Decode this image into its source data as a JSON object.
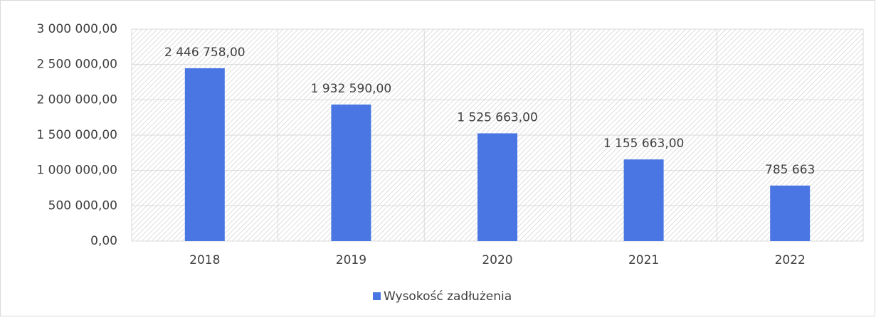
{
  "chart_data": {
    "type": "bar",
    "categories": [
      "2018",
      "2019",
      "2020",
      "2021",
      "2022"
    ],
    "series": [
      {
        "name": "Wysokość zadłużenia",
        "color": "#4a76e3",
        "values": [
          2446758,
          1932590,
          1525663,
          1155663,
          785663
        ],
        "value_labels": [
          "2 446 758,00",
          "1 932 590,00",
          "1 525 663,00",
          "1 155 663,00",
          "785 663"
        ]
      }
    ],
    "ylim": [
      0,
      3000000
    ],
    "yticks": [
      {
        "value": 0,
        "label": "0,00"
      },
      {
        "value": 500000,
        "label": "500 000,00"
      },
      {
        "value": 1000000,
        "label": "1 000 000,00"
      },
      {
        "value": 1500000,
        "label": "1 500 000,00"
      },
      {
        "value": 2000000,
        "label": "2 000 000,00"
      },
      {
        "value": 2500000,
        "label": "2 500 000,00"
      },
      {
        "value": 3000000,
        "label": "3 000 000,00"
      }
    ],
    "grid": true,
    "legend": "bottom"
  }
}
